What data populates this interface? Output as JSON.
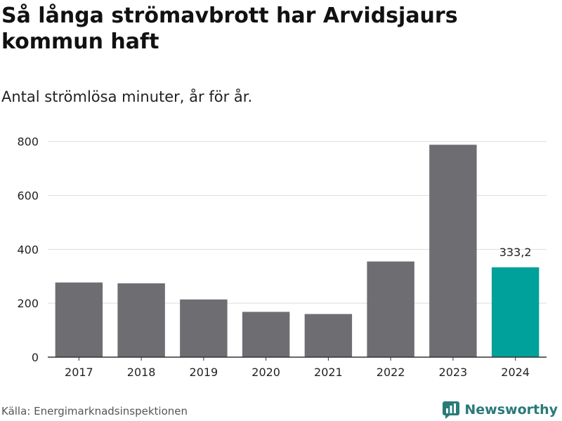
{
  "header": {
    "title": "Så långa strömavbrott har Arvidsjaurs kommun haft",
    "subtitle": "Antal strömlösa minuter, år för år."
  },
  "footer": {
    "source": "Källa: Energimarknadsinspektionen",
    "brand": "Newsworthy"
  },
  "colors": {
    "bar": "#6e6d72",
    "highlight": "#00a19a",
    "grid": "#dddddd",
    "axis": "#333333",
    "text": "#222222",
    "brand": "#2a7a78"
  },
  "chart_data": {
    "type": "bar",
    "title": "Så långa strömavbrott har Arvidsjaurs kommun haft",
    "subtitle": "Antal strömlösa minuter, år för år.",
    "categories": [
      "2017",
      "2018",
      "2019",
      "2020",
      "2021",
      "2022",
      "2023",
      "2024"
    ],
    "values": [
      277,
      274,
      214,
      168,
      160,
      355,
      788,
      333.2
    ],
    "highlight_index": 7,
    "data_label": {
      "index": 7,
      "text": "333,2"
    },
    "yticks": [
      0,
      200,
      400,
      600,
      800
    ],
    "ylim": [
      0,
      820
    ],
    "grid": true,
    "xlabel": "",
    "ylabel": ""
  }
}
